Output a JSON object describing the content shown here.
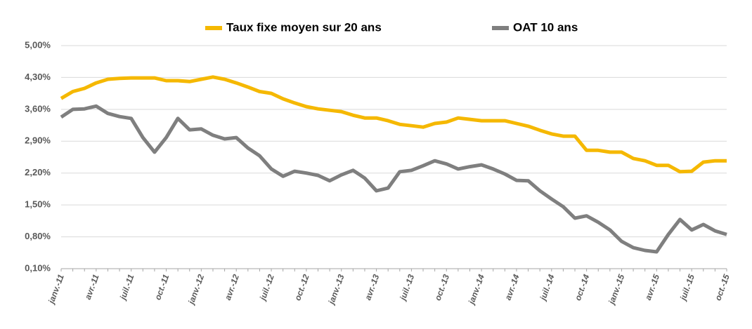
{
  "chart_data": {
    "type": "line",
    "categories": [
      "janv.-11",
      null,
      null,
      "avr.-11",
      null,
      null,
      "juil.-11",
      null,
      null,
      "oct.-11",
      null,
      null,
      "janv.-12",
      null,
      null,
      "avr.-12",
      null,
      null,
      "juil.-12",
      null,
      null,
      "oct.-12",
      null,
      null,
      "janv.-13",
      null,
      null,
      "avr.-13",
      null,
      null,
      "juil.-13",
      null,
      null,
      "oct.-13",
      null,
      null,
      "janv.-14",
      null,
      null,
      "avr.-14",
      null,
      null,
      "juil.-14",
      null,
      null,
      "oct.-14",
      null,
      null,
      "janv.-15",
      null,
      null,
      "avr.-15",
      null,
      null,
      "juil.-15",
      null,
      null,
      "oct.-15"
    ],
    "series": [
      {
        "name": "Taux fixe moyen sur 20 ans",
        "color": "#f5b800",
        "values": [
          3.84,
          3.99,
          4.06,
          4.18,
          4.26,
          4.28,
          4.29,
          4.29,
          4.29,
          4.23,
          4.23,
          4.21,
          4.26,
          4.31,
          4.26,
          4.18,
          4.09,
          3.99,
          3.95,
          3.83,
          3.74,
          3.66,
          3.61,
          3.58,
          3.55,
          3.47,
          3.41,
          3.41,
          3.35,
          3.27,
          3.24,
          3.21,
          3.29,
          3.32,
          3.41,
          3.38,
          3.35,
          3.35,
          3.35,
          3.29,
          3.23,
          3.14,
          3.06,
          3.01,
          3.01,
          2.7,
          2.7,
          2.66,
          2.66,
          2.52,
          2.47,
          2.37,
          2.37,
          2.23,
          2.24,
          2.44,
          2.47,
          2.47
        ]
      },
      {
        "name": "OAT 10 ans",
        "color": "#7f7f7f",
        "values": [
          3.43,
          3.6,
          3.61,
          3.67,
          3.51,
          3.44,
          3.4,
          2.98,
          2.66,
          2.98,
          3.4,
          3.15,
          3.17,
          3.03,
          2.95,
          2.98,
          2.75,
          2.58,
          2.29,
          2.13,
          2.24,
          2.2,
          2.15,
          2.03,
          2.16,
          2.26,
          2.09,
          1.81,
          1.87,
          2.23,
          2.26,
          2.36,
          2.47,
          2.4,
          2.29,
          2.34,
          2.38,
          2.29,
          2.18,
          2.04,
          2.03,
          1.81,
          1.63,
          1.46,
          1.21,
          1.26,
          1.12,
          0.95,
          0.7,
          0.56,
          0.5,
          0.47,
          0.85,
          1.18,
          0.95,
          1.07,
          0.93,
          0.85
        ]
      }
    ],
    "ylim": [
      0.1,
      5.0
    ],
    "yticks": [
      {
        "value": 0.1,
        "label": "0,10%"
      },
      {
        "value": 0.8,
        "label": "0,80%"
      },
      {
        "value": 1.5,
        "label": "1,50%"
      },
      {
        "value": 2.2,
        "label": "2,20%"
      },
      {
        "value": 2.9,
        "label": "2,90%"
      },
      {
        "value": 3.6,
        "label": "3,60%"
      },
      {
        "value": 4.3,
        "label": "4,30%"
      },
      {
        "value": 5.0,
        "label": "5,00%"
      }
    ],
    "grid": true,
    "legend": "top"
  }
}
